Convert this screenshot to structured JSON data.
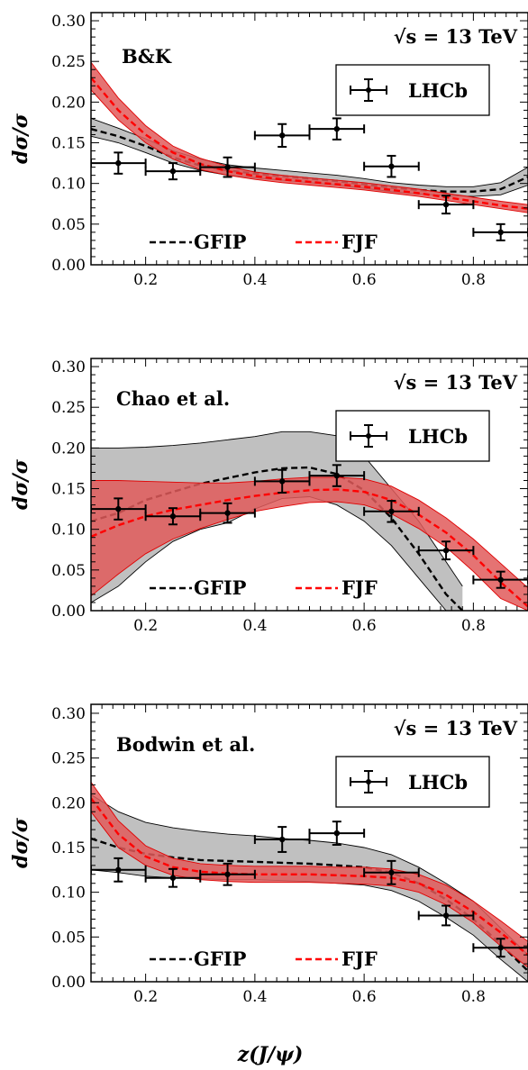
{
  "figure": {
    "xlabel": "z(J/ψ)",
    "ylabel": "dσ/σ",
    "energy_label": "√s = 13 TeV",
    "data_legend_label": "LHCb",
    "gfip_label": "GFIP",
    "fjf_label": "FJF",
    "colors": {
      "gfip_line": "#000000",
      "gfip_band": "#c0c0c0",
      "fjf_line": "#ff0000",
      "fjf_band": "#e05a5a",
      "data": "#000000"
    }
  },
  "chart_data": [
    {
      "type": "line",
      "title": "B&K",
      "xlim": [
        0.1,
        0.9
      ],
      "ylim": [
        0.0,
        0.31
      ],
      "xticks": [
        "0.2",
        "0.4",
        "0.6",
        "0.8"
      ],
      "yticks": [
        "0.00",
        "0.05",
        "0.10",
        "0.15",
        "0.20",
        "0.25",
        "0.30"
      ],
      "lhcb": [
        {
          "x": 0.15,
          "y": 0.125,
          "xerr": 0.05,
          "yerr": 0.013
        },
        {
          "x": 0.25,
          "y": 0.115,
          "xerr": 0.05,
          "yerr": 0.01
        },
        {
          "x": 0.35,
          "y": 0.12,
          "xerr": 0.05,
          "yerr": 0.012
        },
        {
          "x": 0.45,
          "y": 0.159,
          "xerr": 0.05,
          "yerr": 0.014
        },
        {
          "x": 0.55,
          "y": 0.167,
          "xerr": 0.05,
          "yerr": 0.013
        },
        {
          "x": 0.65,
          "y": 0.121,
          "xerr": 0.05,
          "yerr": 0.013
        },
        {
          "x": 0.75,
          "y": 0.074,
          "xerr": 0.05,
          "yerr": 0.011
        },
        {
          "x": 0.85,
          "y": 0.04,
          "xerr": 0.05,
          "yerr": 0.01
        }
      ],
      "gfip": {
        "x": [
          0.1,
          0.15,
          0.2,
          0.25,
          0.3,
          0.35,
          0.4,
          0.45,
          0.5,
          0.55,
          0.6,
          0.65,
          0.7,
          0.75,
          0.8,
          0.85,
          0.9
        ],
        "y": [
          0.167,
          0.158,
          0.146,
          0.132,
          0.122,
          0.116,
          0.112,
          0.109,
          0.106,
          0.103,
          0.099,
          0.095,
          0.092,
          0.09,
          0.09,
          0.093,
          0.108
        ],
        "lower": [
          0.158,
          0.15,
          0.138,
          0.125,
          0.116,
          0.11,
          0.107,
          0.104,
          0.101,
          0.098,
          0.094,
          0.09,
          0.087,
          0.085,
          0.084,
          0.086,
          0.098
        ],
        "upper": [
          0.18,
          0.168,
          0.155,
          0.14,
          0.13,
          0.123,
          0.119,
          0.116,
          0.113,
          0.11,
          0.106,
          0.101,
          0.098,
          0.096,
          0.096,
          0.101,
          0.12
        ]
      },
      "fjf": {
        "x": [
          0.1,
          0.15,
          0.2,
          0.25,
          0.3,
          0.35,
          0.4,
          0.45,
          0.5,
          0.55,
          0.6,
          0.65,
          0.7,
          0.75,
          0.8,
          0.85,
          0.9
        ],
        "y": [
          0.23,
          0.19,
          0.16,
          0.138,
          0.124,
          0.115,
          0.109,
          0.105,
          0.102,
          0.099,
          0.096,
          0.092,
          0.088,
          0.083,
          0.078,
          0.073,
          0.069
        ],
        "lower": [
          0.215,
          0.178,
          0.15,
          0.13,
          0.117,
          0.11,
          0.105,
          0.101,
          0.098,
          0.095,
          0.092,
          0.088,
          0.084,
          0.079,
          0.074,
          0.069,
          0.064
        ],
        "upper": [
          0.249,
          0.205,
          0.171,
          0.146,
          0.131,
          0.121,
          0.114,
          0.11,
          0.107,
          0.104,
          0.101,
          0.097,
          0.093,
          0.088,
          0.083,
          0.078,
          0.074
        ]
      }
    },
    {
      "type": "line",
      "title": "Chao et al.",
      "xlim": [
        0.1,
        0.9
      ],
      "ylim": [
        0.0,
        0.31
      ],
      "xticks": [
        "0.2",
        "0.4",
        "0.6",
        "0.8"
      ],
      "yticks": [
        "0.00",
        "0.05",
        "0.10",
        "0.15",
        "0.20",
        "0.25",
        "0.30"
      ],
      "lhcb": [
        {
          "x": 0.15,
          "y": 0.125,
          "xerr": 0.05,
          "yerr": 0.013
        },
        {
          "x": 0.25,
          "y": 0.116,
          "xerr": 0.05,
          "yerr": 0.01
        },
        {
          "x": 0.35,
          "y": 0.12,
          "xerr": 0.05,
          "yerr": 0.012
        },
        {
          "x": 0.45,
          "y": 0.159,
          "xerr": 0.05,
          "yerr": 0.014
        },
        {
          "x": 0.55,
          "y": 0.166,
          "xerr": 0.05,
          "yerr": 0.013
        },
        {
          "x": 0.65,
          "y": 0.122,
          "xerr": 0.05,
          "yerr": 0.013
        },
        {
          "x": 0.75,
          "y": 0.074,
          "xerr": 0.05,
          "yerr": 0.011
        },
        {
          "x": 0.85,
          "y": 0.038,
          "xerr": 0.05,
          "yerr": 0.01
        }
      ],
      "gfip": {
        "x": [
          0.1,
          0.15,
          0.2,
          0.25,
          0.3,
          0.35,
          0.4,
          0.45,
          0.5,
          0.55,
          0.6,
          0.65,
          0.7,
          0.75,
          0.78
        ],
        "y": [
          0.11,
          0.12,
          0.136,
          0.146,
          0.156,
          0.163,
          0.17,
          0.175,
          0.176,
          0.168,
          0.148,
          0.114,
          0.07,
          0.02,
          0.0
        ],
        "lower": [
          0.01,
          0.03,
          0.06,
          0.085,
          0.1,
          0.108,
          0.125,
          0.138,
          0.14,
          0.13,
          0.11,
          0.08,
          0.04,
          0.0,
          0.0
        ],
        "upper": [
          0.2,
          0.2,
          0.201,
          0.203,
          0.206,
          0.21,
          0.214,
          0.22,
          0.22,
          0.215,
          0.19,
          0.15,
          0.11,
          0.06,
          0.03
        ]
      },
      "fjf": {
        "x": [
          0.1,
          0.15,
          0.2,
          0.25,
          0.3,
          0.35,
          0.4,
          0.45,
          0.5,
          0.55,
          0.6,
          0.65,
          0.7,
          0.75,
          0.8,
          0.85,
          0.9
        ],
        "y": [
          0.091,
          0.105,
          0.116,
          0.124,
          0.13,
          0.136,
          0.141,
          0.145,
          0.148,
          0.149,
          0.146,
          0.136,
          0.118,
          0.096,
          0.068,
          0.035,
          0.005
        ],
        "lower": [
          0.018,
          0.045,
          0.07,
          0.088,
          0.101,
          0.112,
          0.122,
          0.128,
          0.133,
          0.134,
          0.13,
          0.119,
          0.101,
          0.078,
          0.048,
          0.015,
          0.0
        ],
        "upper": [
          0.16,
          0.16,
          0.159,
          0.158,
          0.157,
          0.157,
          0.159,
          0.162,
          0.164,
          0.164,
          0.162,
          0.153,
          0.136,
          0.114,
          0.088,
          0.058,
          0.028
        ]
      }
    },
    {
      "type": "line",
      "title": "Bodwin et al.",
      "xlim": [
        0.1,
        0.9
      ],
      "ylim": [
        0.0,
        0.31
      ],
      "xticks": [
        "0.2",
        "0.4",
        "0.6",
        "0.8"
      ],
      "yticks": [
        "0.00",
        "0.05",
        "0.10",
        "0.15",
        "0.20",
        "0.25",
        "0.30"
      ],
      "lhcb": [
        {
          "x": 0.15,
          "y": 0.125,
          "xerr": 0.05,
          "yerr": 0.013
        },
        {
          "x": 0.25,
          "y": 0.116,
          "xerr": 0.05,
          "yerr": 0.01
        },
        {
          "x": 0.35,
          "y": 0.12,
          "xerr": 0.05,
          "yerr": 0.012
        },
        {
          "x": 0.45,
          "y": 0.159,
          "xerr": 0.05,
          "yerr": 0.014
        },
        {
          "x": 0.55,
          "y": 0.166,
          "xerr": 0.05,
          "yerr": 0.013
        },
        {
          "x": 0.65,
          "y": 0.122,
          "xerr": 0.05,
          "yerr": 0.013
        },
        {
          "x": 0.75,
          "y": 0.074,
          "xerr": 0.05,
          "yerr": 0.011
        },
        {
          "x": 0.85,
          "y": 0.038,
          "xerr": 0.05,
          "yerr": 0.01
        }
      ],
      "gfip": {
        "x": [
          0.1,
          0.15,
          0.2,
          0.25,
          0.3,
          0.35,
          0.4,
          0.45,
          0.5,
          0.55,
          0.6,
          0.65,
          0.7,
          0.75,
          0.8,
          0.85,
          0.9
        ],
        "y": [
          0.16,
          0.15,
          0.143,
          0.139,
          0.136,
          0.135,
          0.134,
          0.133,
          0.132,
          0.13,
          0.128,
          0.122,
          0.11,
          0.092,
          0.07,
          0.042,
          0.012
        ],
        "lower": [
          0.125,
          0.122,
          0.118,
          0.116,
          0.115,
          0.114,
          0.114,
          0.113,
          0.112,
          0.11,
          0.108,
          0.102,
          0.09,
          0.072,
          0.052,
          0.025,
          0.0
        ],
        "upper": [
          0.209,
          0.19,
          0.178,
          0.172,
          0.168,
          0.165,
          0.163,
          0.16,
          0.158,
          0.155,
          0.15,
          0.142,
          0.128,
          0.11,
          0.09,
          0.06,
          0.03
        ]
      },
      "fjf": {
        "x": [
          0.1,
          0.15,
          0.2,
          0.25,
          0.3,
          0.35,
          0.4,
          0.45,
          0.5,
          0.55,
          0.6,
          0.65,
          0.7,
          0.75,
          0.8,
          0.85,
          0.9
        ],
        "y": [
          0.205,
          0.165,
          0.14,
          0.128,
          0.123,
          0.121,
          0.12,
          0.12,
          0.12,
          0.119,
          0.118,
          0.116,
          0.11,
          0.097,
          0.078,
          0.055,
          0.03
        ],
        "lower": [
          0.19,
          0.15,
          0.13,
          0.119,
          0.114,
          0.112,
          0.111,
          0.111,
          0.111,
          0.11,
          0.109,
          0.107,
          0.1,
          0.086,
          0.066,
          0.04,
          0.016
        ],
        "upper": [
          0.223,
          0.18,
          0.152,
          0.138,
          0.132,
          0.13,
          0.129,
          0.129,
          0.129,
          0.128,
          0.128,
          0.126,
          0.12,
          0.108,
          0.09,
          0.068,
          0.045
        ]
      }
    }
  ]
}
